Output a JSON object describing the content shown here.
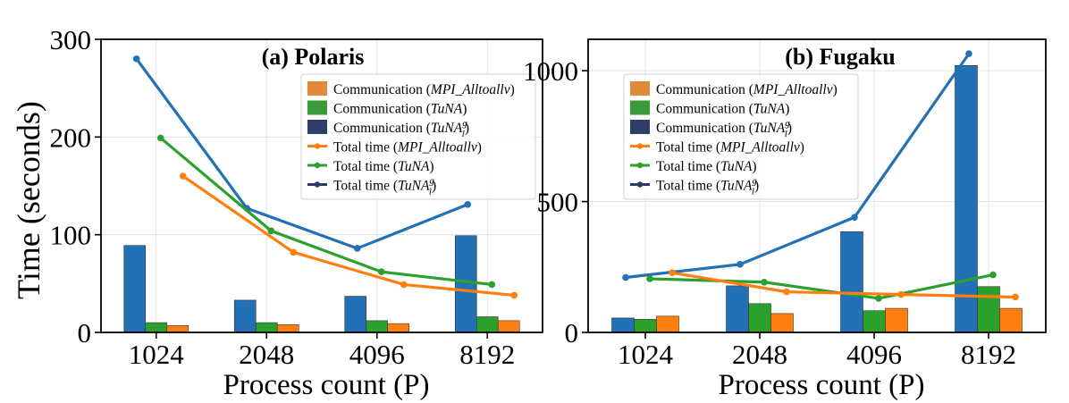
{
  "colors": {
    "blue": "#2270b5",
    "green": "#2ca02c",
    "orange": "#ff7f0e",
    "navy": "#2b3a67",
    "legend_orange": "#e08a3a",
    "legend_green": "#3a9a3a",
    "legend_navy": "#2e3e68"
  },
  "figure": {
    "ylabel": "Time (seconds)"
  },
  "chart_data": [
    {
      "type": "bar",
      "title": "(a) Polaris",
      "xlabel": "Process count (P)",
      "ylabel": "Time (seconds)",
      "categories": [
        "1024",
        "2048",
        "4096",
        "8192"
      ],
      "ylim": [
        0,
        300
      ],
      "yticks": [
        0,
        100,
        200,
        300
      ],
      "grid": true,
      "legend_position": "top-right",
      "legend": [
        {
          "label": "Communication (MPI_Alltoallv)",
          "kind": "bar",
          "color": "#e08a3a"
        },
        {
          "label": "Communication (TuNA)",
          "kind": "bar",
          "color": "#3a9a3a"
        },
        {
          "label": "Communication (TuNA_l^g)",
          "kind": "bar",
          "color": "#2e3e68"
        },
        {
          "label": "Total time (MPI_Alltoallv)",
          "kind": "line",
          "color": "#ff7f0e"
        },
        {
          "label": "Total time (TuNA)",
          "kind": "line",
          "color": "#2ca02c"
        },
        {
          "label": "Total time (TuNA_l^g)",
          "kind": "line",
          "color": "#2b3a67"
        }
      ],
      "bar_series": [
        {
          "color": "#2270b5",
          "values": [
            89,
            33,
            37,
            99
          ]
        },
        {
          "color": "#2ca02c",
          "values": [
            10,
            10,
            12,
            16
          ]
        },
        {
          "color": "#ff7f0e",
          "values": [
            7,
            8,
            9,
            12
          ]
        }
      ],
      "line_series": [
        {
          "color": "#2270b5",
          "values": [
            280,
            127,
            86,
            131
          ]
        },
        {
          "color": "#2ca02c",
          "values": [
            199,
            104,
            62,
            49
          ]
        },
        {
          "color": "#ff7f0e",
          "values": [
            160,
            82,
            49,
            38
          ]
        }
      ]
    },
    {
      "type": "bar",
      "title": "(b) Fugaku",
      "xlabel": "Process count (P)",
      "ylabel": "",
      "categories": [
        "1024",
        "2048",
        "4096",
        "8192"
      ],
      "ylim": [
        0,
        1120
      ],
      "yticks": [
        0,
        500,
        1000
      ],
      "grid": true,
      "legend_position": "top-left",
      "legend": [
        {
          "label": "Communication (MPI_Alltoallv)",
          "kind": "bar",
          "color": "#e08a3a"
        },
        {
          "label": "Communication (TuNA)",
          "kind": "bar",
          "color": "#3a9a3a"
        },
        {
          "label": "Communication (TuNA_l^g)",
          "kind": "bar",
          "color": "#2e3e68"
        },
        {
          "label": "Total time (MPI_Alltoallv)",
          "kind": "line",
          "color": "#ff7f0e"
        },
        {
          "label": "Total time (TuNA)",
          "kind": "line",
          "color": "#2ca02c"
        },
        {
          "label": "Total time (TuNA_l^g)",
          "kind": "line",
          "color": "#2b3a67"
        }
      ],
      "bar_series": [
        {
          "color": "#2270b5",
          "values": [
            55,
            178,
            385,
            1020
          ]
        },
        {
          "color": "#2ca02c",
          "values": [
            50,
            110,
            83,
            175
          ]
        },
        {
          "color": "#ff7f0e",
          "values": [
            62,
            72,
            92,
            92
          ]
        }
      ],
      "line_series": [
        {
          "color": "#2270b5",
          "values": [
            210,
            260,
            440,
            1065
          ]
        },
        {
          "color": "#2ca02c",
          "values": [
            205,
            192,
            130,
            220
          ]
        },
        {
          "color": "#ff7f0e",
          "values": [
            228,
            155,
            145,
            135
          ]
        }
      ]
    }
  ]
}
